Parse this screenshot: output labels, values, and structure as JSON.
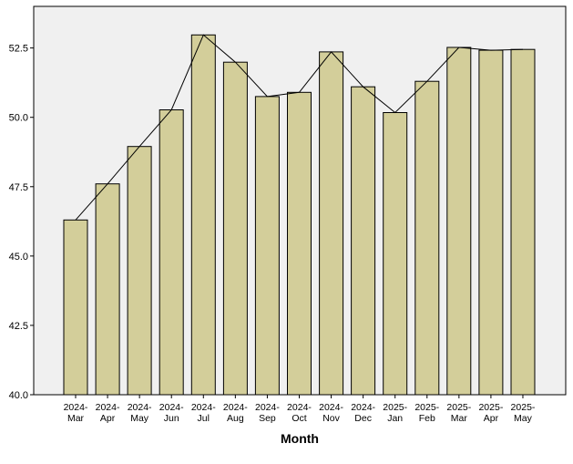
{
  "colors": {
    "plot_background": "#f0f0f0",
    "bar_fill": "#d3ce9a",
    "bar_stroke": "#000000",
    "line": "#000000"
  },
  "chart_data": {
    "type": "bar",
    "title": "",
    "xlabel": "Month",
    "ylabel": "",
    "ylim": [
      40.0,
      54.0
    ],
    "yticks": [
      "40.0",
      "42.5",
      "45.0",
      "47.5",
      "50.0",
      "52.5"
    ],
    "grid": false,
    "legend": "none",
    "categories": [
      [
        "2024-",
        "Mar"
      ],
      [
        "2024-",
        "Apr"
      ],
      [
        "2024-",
        "May"
      ],
      [
        "2024-",
        "Jun"
      ],
      [
        "2024-",
        "Jul"
      ],
      [
        "2024-",
        "Aug"
      ],
      [
        "2024-",
        "Sep"
      ],
      [
        "2024-",
        "Oct"
      ],
      [
        "2024-",
        "Nov"
      ],
      [
        "2024-",
        "Dec"
      ],
      [
        "2025-",
        "Jan"
      ],
      [
        "2025-",
        "Feb"
      ],
      [
        "2025-",
        "Mar"
      ],
      [
        "2025-",
        "Apr"
      ],
      [
        "2025-",
        "May"
      ]
    ],
    "series": [
      {
        "type": "bar",
        "values": [
          46.3,
          47.6,
          48.95,
          50.27,
          52.97,
          51.99,
          50.75,
          50.9,
          52.36,
          51.1,
          50.17,
          51.3,
          52.52,
          52.42,
          52.45
        ]
      },
      {
        "type": "line",
        "values": [
          46.3,
          47.6,
          48.95,
          50.27,
          52.97,
          51.99,
          50.75,
          50.9,
          52.36,
          51.1,
          50.17,
          51.3,
          52.52,
          52.42,
          52.45
        ]
      }
    ]
  }
}
